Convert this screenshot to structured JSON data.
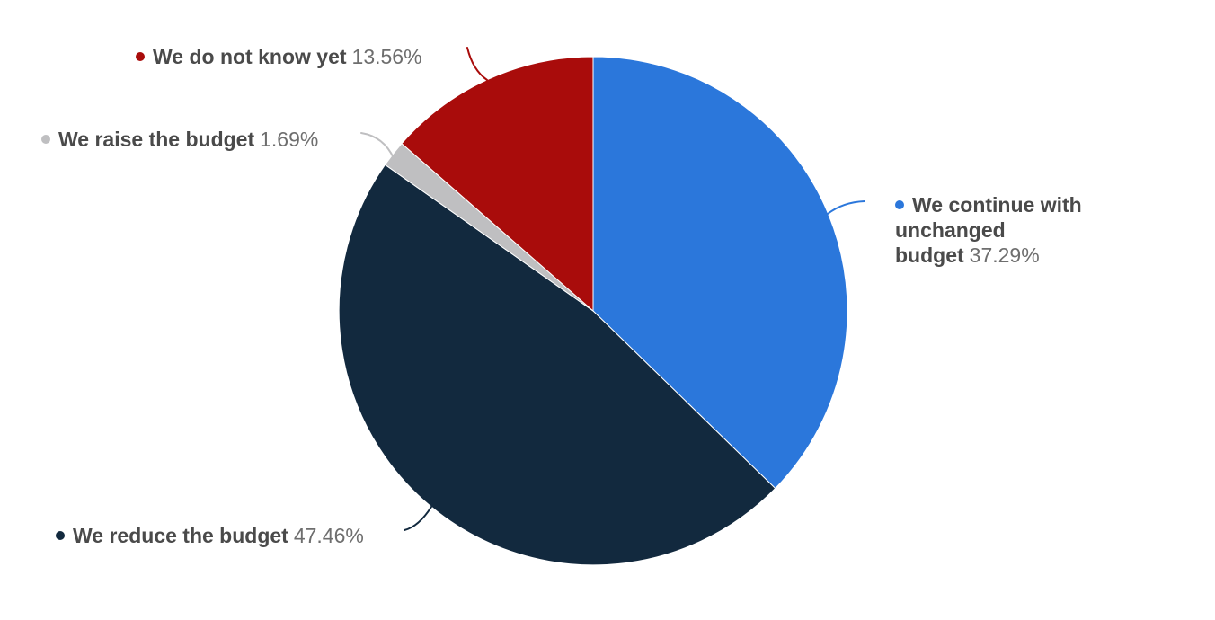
{
  "chart_data": {
    "type": "pie",
    "title": "",
    "start_angle_deg": 0,
    "direction": "clockwise",
    "legend_position": "outside-callout-labels",
    "background_color": "#ffffff",
    "slices": [
      {
        "id": "continue-unchanged-budget",
        "label": "We continue with unchanged budget",
        "value": 37.29,
        "percent_text": "37.29%",
        "color": "#2b77db"
      },
      {
        "id": "reduce-budget",
        "label": "We reduce the budget",
        "value": 47.46,
        "percent_text": "47.46%",
        "color": "#12293e"
      },
      {
        "id": "raise-budget",
        "label": "We raise the budget",
        "value": 1.69,
        "percent_text": "1.69%",
        "color": "#bfbfc1"
      },
      {
        "id": "do-not-know-yet",
        "label": "We do not know yet",
        "value": 13.56,
        "percent_text": "13.56%",
        "color": "#a90c0b"
      }
    ]
  },
  "styles": {
    "label_name_color": "#4a4a4a",
    "label_percent_color": "#6e6e6e",
    "slice_border_color": "#ffffff"
  }
}
